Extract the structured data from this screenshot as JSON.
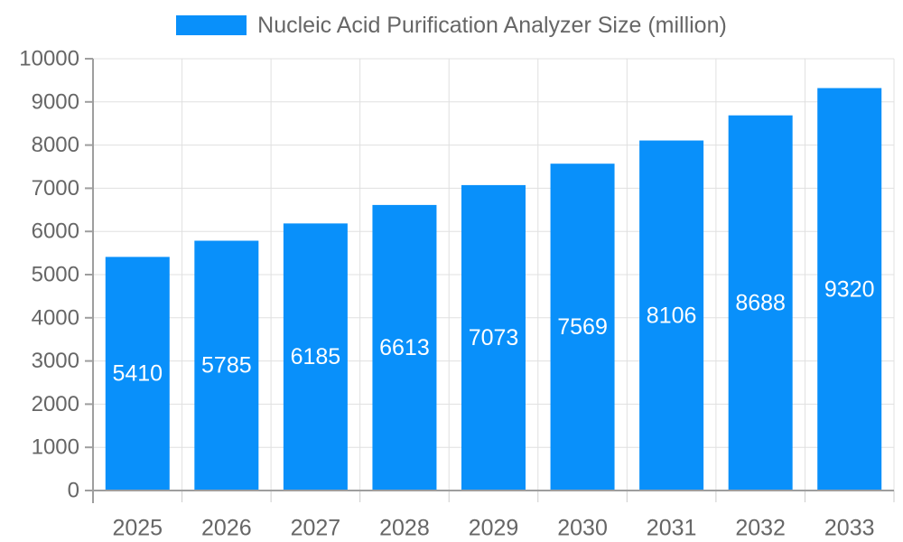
{
  "legend": {
    "label": "Nucleic Acid Purification Analyzer Size (million)"
  },
  "colors": {
    "bar": "#0990fa",
    "grid": "#e0e0e0",
    "tick": "#cccccc",
    "axis": "#9e9e9e",
    "text": "#666666",
    "value_label": "#ffffff",
    "background": "#ffffff"
  },
  "chart_data": {
    "type": "bar",
    "title": "Nucleic Acid Purification Analyzer Size (million)",
    "categories": [
      "2025",
      "2026",
      "2027",
      "2028",
      "2029",
      "2030",
      "2031",
      "2032",
      "2033"
    ],
    "series": [
      {
        "name": "Nucleic Acid Purification Analyzer Size (million)",
        "values": [
          5410,
          5785,
          6185,
          6613,
          7073,
          7569,
          8106,
          8688,
          9320
        ]
      }
    ],
    "xlabel": "",
    "ylabel": "",
    "ylim": [
      0,
      10000
    ],
    "ytick_step": 1000,
    "yticks": [
      0,
      1000,
      2000,
      3000,
      4000,
      5000,
      6000,
      7000,
      8000,
      9000,
      10000
    ],
    "grid": true,
    "legend_position": "top-center",
    "value_labels": "inside-center"
  }
}
